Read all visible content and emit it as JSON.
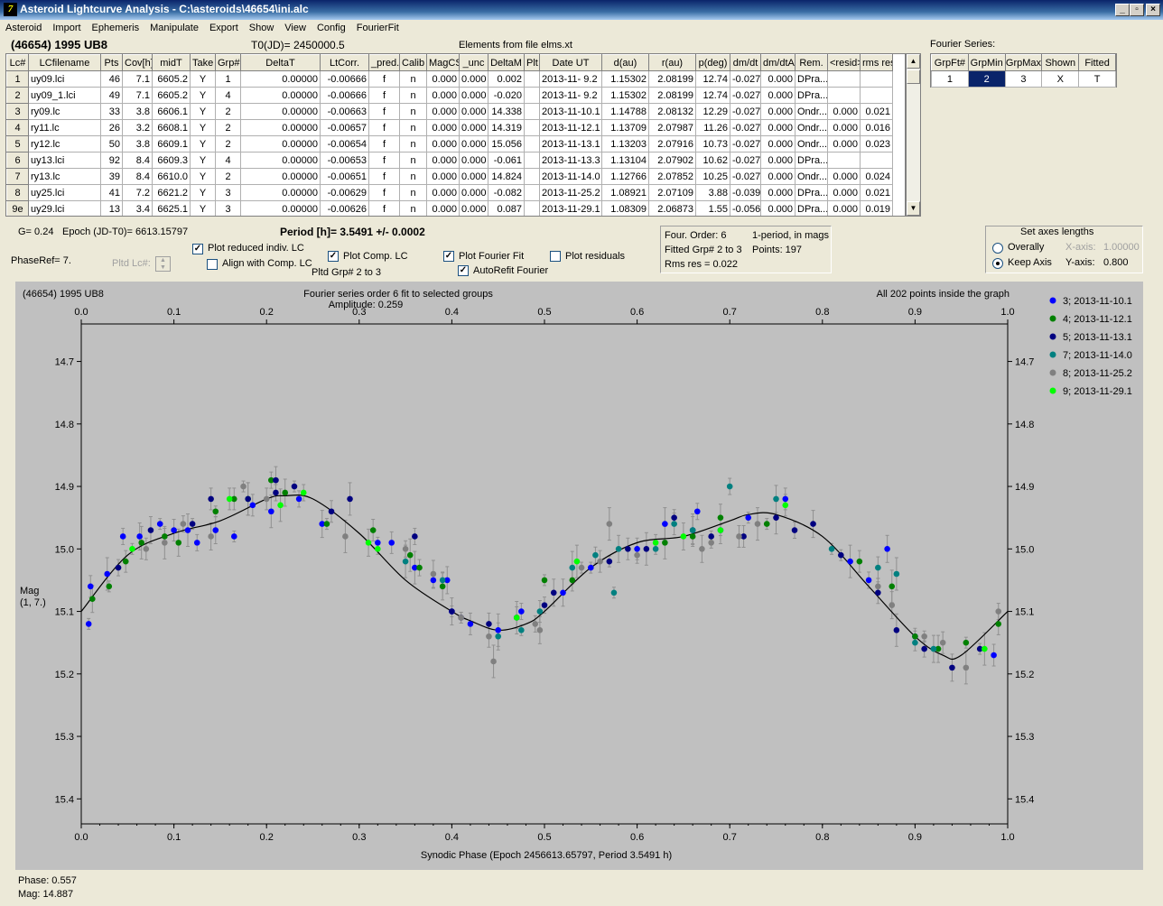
{
  "window": {
    "title": "Asteroid Lightcurve Analysis - C:\\asteroids\\46654\\ini.alc",
    "app_icon": "7"
  },
  "menu": [
    "Asteroid",
    "Import",
    "Ephemeris",
    "Manipulate",
    "Export",
    "Show",
    "View",
    "Config",
    "FourierFit"
  ],
  "header": {
    "object": "(46654) 1995 UB8",
    "t0": "T0(JD)= 2450000.5",
    "elements": "Elements from file elms.xt",
    "fourier_series_label": "Fourier Series:"
  },
  "grid": {
    "columns": [
      "Lc#",
      "LCfilename",
      "Pts",
      "Cov[h]",
      "midT",
      "Take",
      "Grp#",
      "DeltaT",
      "LtCorr.",
      "_pred.",
      "Calib",
      "MagCS",
      "_unc",
      "DeltaM",
      "Plt",
      "Date UT",
      "d(au)",
      "r(au)",
      "p(deg)",
      "dm/dt",
      "dm/dtA",
      "Rem.",
      "<resid>",
      "rms res"
    ],
    "rows": [
      [
        "1",
        "uy09.lci",
        "46",
        "7.1",
        "6605.2",
        "Y",
        "1",
        "0.00000",
        "-0.00666",
        "f",
        "n",
        "0.000",
        "0.000",
        "0.002",
        "",
        "2013-11- 9.2",
        "1.15302",
        "2.08199",
        "12.74",
        "-0.027",
        "0.000",
        "DPra...",
        "",
        ""
      ],
      [
        "2",
        "uy09_1.lci",
        "49",
        "7.1",
        "6605.2",
        "Y",
        "4",
        "0.00000",
        "-0.00666",
        "f",
        "n",
        "0.000",
        "0.000",
        "-0.020",
        "",
        "2013-11- 9.2",
        "1.15302",
        "2.08199",
        "12.74",
        "-0.027",
        "0.000",
        "DPra...",
        "",
        ""
      ],
      [
        "3",
        "ry09.lc",
        "33",
        "3.8",
        "6606.1",
        "Y",
        "2",
        "0.00000",
        "-0.00663",
        "f",
        "n",
        "0.000",
        "0.000",
        "14.338",
        "",
        "2013-11-10.1",
        "1.14788",
        "2.08132",
        "12.29",
        "-0.027",
        "0.000",
        "Ondr...",
        "0.000",
        "0.021"
      ],
      [
        "4",
        "ry11.lc",
        "26",
        "3.2",
        "6608.1",
        "Y",
        "2",
        "0.00000",
        "-0.00657",
        "f",
        "n",
        "0.000",
        "0.000",
        "14.319",
        "",
        "2013-11-12.1",
        "1.13709",
        "2.07987",
        "11.26",
        "-0.027",
        "0.000",
        "Ondr...",
        "0.000",
        "0.016"
      ],
      [
        "5",
        "ry12.lc",
        "50",
        "3.8",
        "6609.1",
        "Y",
        "2",
        "0.00000",
        "-0.00654",
        "f",
        "n",
        "0.000",
        "0.000",
        "15.056",
        "",
        "2013-11-13.1",
        "1.13203",
        "2.07916",
        "10.73",
        "-0.027",
        "0.000",
        "Ondr...",
        "0.000",
        "0.023"
      ],
      [
        "6",
        "uy13.lci",
        "92",
        "8.4",
        "6609.3",
        "Y",
        "4",
        "0.00000",
        "-0.00653",
        "f",
        "n",
        "0.000",
        "0.000",
        "-0.061",
        "",
        "2013-11-13.3",
        "1.13104",
        "2.07902",
        "10.62",
        "-0.027",
        "0.000",
        "DPra...",
        "",
        ""
      ],
      [
        "7",
        "ry13.lc",
        "39",
        "8.4",
        "6610.0",
        "Y",
        "2",
        "0.00000",
        "-0.00651",
        "f",
        "n",
        "0.000",
        "0.000",
        "14.824",
        "",
        "2013-11-14.0",
        "1.12766",
        "2.07852",
        "10.25",
        "-0.027",
        "0.000",
        "Ondr...",
        "0.000",
        "0.024"
      ],
      [
        "8",
        "uy25.lci",
        "41",
        "7.2",
        "6621.2",
        "Y",
        "3",
        "0.00000",
        "-0.00629",
        "f",
        "n",
        "0.000",
        "0.000",
        "-0.082",
        "",
        "2013-11-25.2",
        "1.08921",
        "2.07109",
        "3.88",
        "-0.039",
        "0.000",
        "DPra...",
        "0.000",
        "0.021"
      ],
      [
        "9e",
        "uy29.lci",
        "13",
        "3.4",
        "6625.1",
        "Y",
        "3",
        "0.00000",
        "-0.00626",
        "f",
        "n",
        "0.000",
        "0.000",
        "0.087",
        "",
        "2013-11-29.1",
        "1.08309",
        "2.06873",
        "1.55",
        "-0.056",
        "0.000",
        "DPra...",
        "0.000",
        "0.019"
      ]
    ]
  },
  "fourier_table": {
    "columns": [
      "GrpFt#",
      "GrpMin",
      "GrpMax",
      "Shown",
      "Fitted"
    ],
    "row": [
      "1",
      "2",
      "3",
      "X",
      "T"
    ]
  },
  "controls": {
    "g": "G= 0.24",
    "epoch": "Epoch (JD-T0)= 6613.15797",
    "period": "Period [h]= 3.5491 +/- 0.0002",
    "phaseref": "PhaseRef= 7.",
    "pltd_lc": "Pltd Lc#:",
    "pltd_grp": "Pltd Grp#  2   to   3",
    "cb_reduced": "Plot reduced indiv. LC",
    "cb_align": "Align with Comp. LC",
    "cb_comp": "Plot Comp. LC",
    "cb_fourier": "Plot Fourier Fit",
    "cb_autorefit": "AutoRefit Fourier",
    "cb_residuals": "Plot residuals",
    "checked": {
      "reduced": true,
      "align": false,
      "comp": true,
      "fourier": true,
      "autorefit": true,
      "residuals": false
    }
  },
  "fit_info": {
    "line1a": "Four. Order:  6",
    "line1b": "1-period, in mags",
    "line2a": "Fitted Grp# 2 to 3",
    "line2b": "Points: 197",
    "line3": "Rms res     = 0.022"
  },
  "axes_lengths": {
    "title": "Set axes lengths",
    "overally": "Overally",
    "keep_axis": "Keep Axis",
    "x_label": "X-axis:",
    "x_value": "1.00000",
    "y_label": "Y-axis:",
    "y_value": "0.800",
    "selected": "keep_axis"
  },
  "status": {
    "phase": "Phase:  0.557",
    "mag": "Mag:    14.887"
  },
  "chart_data": {
    "type": "scatter",
    "title_left": "(46654) 1995 UB8",
    "title_center": "Fourier series order 6 fit to selected groups",
    "subtitle_center": "Amplitude: 0.259",
    "title_right": "All 202 points inside the graph",
    "xlabel": "Synodic Phase (Epoch 2456613.65797, Period 3.5491 h)",
    "ylabel": "Mag\n(1, 7.)",
    "xlim": [
      0,
      1
    ],
    "ylim": [
      14.64,
      15.44
    ],
    "y_inverted": true,
    "x_ticks": [
      "0.0",
      "0.1",
      "0.2",
      "0.3",
      "0.4",
      "0.5",
      "0.6",
      "0.7",
      "0.8",
      "0.9",
      "1.0"
    ],
    "y_ticks": [
      "14.7",
      "14.8",
      "14.9",
      "15.0",
      "15.1",
      "15.2",
      "15.3",
      "15.4"
    ],
    "fit_curve": {
      "x": [
        0,
        0.05,
        0.1,
        0.15,
        0.2,
        0.22,
        0.25,
        0.3,
        0.35,
        0.4,
        0.42,
        0.45,
        0.48,
        0.5,
        0.55,
        0.6,
        0.65,
        0.7,
        0.72,
        0.75,
        0.8,
        0.85,
        0.9,
        0.93,
        0.95,
        1.0
      ],
      "y": [
        15.1,
        15.01,
        14.975,
        14.955,
        14.92,
        14.915,
        14.92,
        14.975,
        15.05,
        15.1,
        15.115,
        15.13,
        15.12,
        15.1,
        15.03,
        14.99,
        14.98,
        14.955,
        14.945,
        14.945,
        14.98,
        15.06,
        15.14,
        15.17,
        15.17,
        15.1
      ]
    },
    "series": [
      {
        "name": "3; 2013-11-10.1",
        "color": "#0000ff",
        "points": [
          [
            0.008,
            15.12
          ],
          [
            0.01,
            15.06
          ],
          [
            0.028,
            15.04
          ],
          [
            0.045,
            14.98
          ],
          [
            0.063,
            14.98
          ],
          [
            0.085,
            14.96
          ],
          [
            0.1,
            14.97
          ],
          [
            0.115,
            14.97
          ],
          [
            0.125,
            14.99
          ],
          [
            0.145,
            14.97
          ],
          [
            0.165,
            14.98
          ],
          [
            0.185,
            14.93
          ],
          [
            0.205,
            14.94
          ],
          [
            0.235,
            14.92
          ],
          [
            0.26,
            14.96
          ],
          [
            0.32,
            14.99
          ],
          [
            0.335,
            14.99
          ],
          [
            0.36,
            15.03
          ],
          [
            0.38,
            15.05
          ],
          [
            0.395,
            15.05
          ],
          [
            0.4,
            15.1
          ],
          [
            0.42,
            15.12
          ],
          [
            0.45,
            15.13
          ],
          [
            0.475,
            15.1
          ],
          [
            0.52,
            15.07
          ],
          [
            0.55,
            15.03
          ],
          [
            0.6,
            15.0
          ],
          [
            0.63,
            14.96
          ],
          [
            0.665,
            14.94
          ],
          [
            0.69,
            14.97
          ],
          [
            0.72,
            14.95
          ],
          [
            0.76,
            14.92
          ],
          [
            0.83,
            15.02
          ],
          [
            0.85,
            15.05
          ],
          [
            0.87,
            15.0
          ],
          [
            0.9,
            15.14
          ],
          [
            0.985,
            15.17
          ]
        ]
      },
      {
        "name": "4; 2013-11-12.1",
        "color": "#008000",
        "points": [
          [
            0.012,
            15.08
          ],
          [
            0.03,
            15.06
          ],
          [
            0.048,
            15.02
          ],
          [
            0.065,
            14.99
          ],
          [
            0.09,
            14.98
          ],
          [
            0.105,
            14.99
          ],
          [
            0.145,
            14.94
          ],
          [
            0.165,
            14.92
          ],
          [
            0.18,
            14.92
          ],
          [
            0.205,
            14.89
          ],
          [
            0.22,
            14.91
          ],
          [
            0.265,
            14.96
          ],
          [
            0.315,
            14.97
          ],
          [
            0.355,
            15.01
          ],
          [
            0.365,
            15.03
          ],
          [
            0.39,
            15.06
          ],
          [
            0.5,
            15.05
          ],
          [
            0.53,
            15.05
          ],
          [
            0.63,
            14.99
          ],
          [
            0.66,
            14.98
          ],
          [
            0.69,
            14.95
          ],
          [
            0.74,
            14.96
          ],
          [
            0.84,
            15.02
          ],
          [
            0.875,
            15.06
          ],
          [
            0.9,
            15.14
          ],
          [
            0.925,
            15.16
          ],
          [
            0.955,
            15.15
          ],
          [
            0.99,
            15.12
          ]
        ]
      },
      {
        "name": "5; 2013-11-13.1",
        "color": "#000080",
        "points": [
          [
            0.04,
            15.03
          ],
          [
            0.075,
            14.97
          ],
          [
            0.12,
            14.96
          ],
          [
            0.14,
            14.92
          ],
          [
            0.18,
            14.92
          ],
          [
            0.21,
            14.91
          ],
          [
            0.21,
            14.89
          ],
          [
            0.23,
            14.9
          ],
          [
            0.27,
            14.94
          ],
          [
            0.29,
            14.92
          ],
          [
            0.36,
            14.98
          ],
          [
            0.4,
            15.1
          ],
          [
            0.41,
            15.11
          ],
          [
            0.44,
            15.12
          ],
          [
            0.47,
            15.11
          ],
          [
            0.5,
            15.09
          ],
          [
            0.51,
            15.07
          ],
          [
            0.57,
            15.02
          ],
          [
            0.59,
            15.0
          ],
          [
            0.61,
            15.0
          ],
          [
            0.64,
            14.95
          ],
          [
            0.66,
            14.97
          ],
          [
            0.68,
            14.98
          ],
          [
            0.715,
            14.98
          ],
          [
            0.75,
            14.95
          ],
          [
            0.77,
            14.97
          ],
          [
            0.79,
            14.96
          ],
          [
            0.82,
            15.01
          ],
          [
            0.86,
            15.07
          ],
          [
            0.88,
            15.13
          ],
          [
            0.91,
            15.16
          ],
          [
            0.94,
            15.19
          ],
          [
            0.97,
            15.16
          ]
        ]
      },
      {
        "name": "7; 2013-11-14.0",
        "color": "#008080",
        "points": [
          [
            0.35,
            15.02
          ],
          [
            0.39,
            15.05
          ],
          [
            0.45,
            15.14
          ],
          [
            0.475,
            15.13
          ],
          [
            0.495,
            15.1
          ],
          [
            0.53,
            15.03
          ],
          [
            0.555,
            15.01
          ],
          [
            0.58,
            15.0
          ],
          [
            0.62,
            15.0
          ],
          [
            0.64,
            14.96
          ],
          [
            0.66,
            14.97
          ],
          [
            0.7,
            14.9
          ],
          [
            0.75,
            14.92
          ],
          [
            0.81,
            15.0
          ],
          [
            0.86,
            15.03
          ],
          [
            0.88,
            15.04
          ],
          [
            0.9,
            15.15
          ],
          [
            0.92,
            15.16
          ],
          [
            0.575,
            15.07
          ]
        ]
      },
      {
        "name": "8; 2013-11-25.2",
        "color": "#808080",
        "points": [
          [
            0.07,
            15.0
          ],
          [
            0.09,
            14.99
          ],
          [
            0.11,
            14.96
          ],
          [
            0.14,
            14.98
          ],
          [
            0.175,
            14.9
          ],
          [
            0.2,
            14.92
          ],
          [
            0.285,
            14.98
          ],
          [
            0.35,
            15.0
          ],
          [
            0.38,
            15.04
          ],
          [
            0.41,
            15.11
          ],
          [
            0.44,
            15.14
          ],
          [
            0.445,
            15.18
          ],
          [
            0.49,
            15.12
          ],
          [
            0.495,
            15.13
          ],
          [
            0.54,
            15.03
          ],
          [
            0.56,
            15.02
          ],
          [
            0.57,
            14.96
          ],
          [
            0.6,
            15.01
          ],
          [
            0.67,
            15.0
          ],
          [
            0.68,
            14.99
          ],
          [
            0.71,
            14.98
          ],
          [
            0.73,
            14.96
          ],
          [
            0.86,
            15.06
          ],
          [
            0.875,
            15.09
          ],
          [
            0.91,
            15.14
          ],
          [
            0.93,
            15.15
          ],
          [
            0.955,
            15.19
          ],
          [
            0.99,
            15.1
          ]
        ]
      },
      {
        "name": "9; 2013-11-29.1",
        "color": "#00ff00",
        "points": [
          [
            0.055,
            15.0
          ],
          [
            0.16,
            14.92
          ],
          [
            0.215,
            14.93
          ],
          [
            0.24,
            14.91
          ],
          [
            0.31,
            14.99
          ],
          [
            0.32,
            15.0
          ],
          [
            0.47,
            15.11
          ],
          [
            0.535,
            15.02
          ],
          [
            0.62,
            14.99
          ],
          [
            0.65,
            14.98
          ],
          [
            0.69,
            14.97
          ],
          [
            0.76,
            14.93
          ],
          [
            0.975,
            15.16
          ]
        ]
      }
    ]
  }
}
